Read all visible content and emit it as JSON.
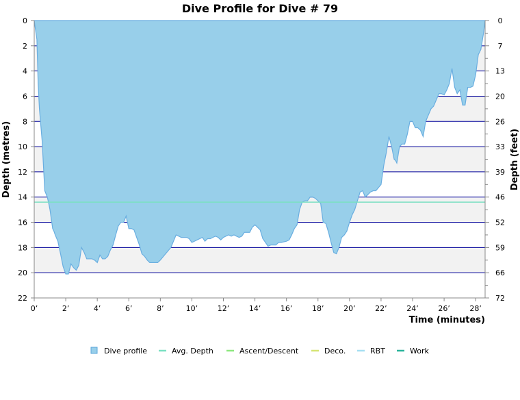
{
  "chart_data": {
    "type": "area",
    "title": "Dive Profile for Dive # 79",
    "xlabel": "Time (minutes)",
    "ylabel": "Depth (metres)",
    "y2label": "Depth (feet)",
    "xlim": [
      0,
      28.6
    ],
    "ylim": [
      0,
      22
    ],
    "y_inverted": true,
    "grid": true,
    "x_ticks": [
      {
        "value": 0,
        "label": "0’"
      },
      {
        "value": 2,
        "label": "2’"
      },
      {
        "value": 4,
        "label": "4’"
      },
      {
        "value": 6,
        "label": "6’"
      },
      {
        "value": 8,
        "label": "8’"
      },
      {
        "value": 10,
        "label": "10’"
      },
      {
        "value": 12,
        "label": "12’"
      },
      {
        "value": 14,
        "label": "14’"
      },
      {
        "value": 16,
        "label": "16’"
      },
      {
        "value": 18,
        "label": "18’"
      },
      {
        "value": 20,
        "label": "20’"
      },
      {
        "value": 22,
        "label": "22’"
      },
      {
        "value": 24,
        "label": "24’"
      },
      {
        "value": 26,
        "label": "26’"
      },
      {
        "value": 28,
        "label": "28’"
      }
    ],
    "y_ticks": [
      {
        "value": 0,
        "label": "0"
      },
      {
        "value": 2,
        "label": "2"
      },
      {
        "value": 4,
        "label": "4"
      },
      {
        "value": 6,
        "label": "6"
      },
      {
        "value": 8,
        "label": "8"
      },
      {
        "value": 10,
        "label": "10"
      },
      {
        "value": 12,
        "label": "12"
      },
      {
        "value": 14,
        "label": "14"
      },
      {
        "value": 16,
        "label": "16"
      },
      {
        "value": 18,
        "label": "18"
      },
      {
        "value": 20,
        "label": "20"
      },
      {
        "value": 22,
        "label": "22"
      }
    ],
    "y2_ticks": [
      {
        "value": 0,
        "label": "0"
      },
      {
        "value": 2,
        "label": "7"
      },
      {
        "value": 4,
        "label": "13"
      },
      {
        "value": 6,
        "label": "20"
      },
      {
        "value": 8,
        "label": "26"
      },
      {
        "value": 10,
        "label": "33"
      },
      {
        "value": 12,
        "label": "39"
      },
      {
        "value": 14,
        "label": "46"
      },
      {
        "value": 16,
        "label": "52"
      },
      {
        "value": 18,
        "label": "59"
      },
      {
        "value": 20,
        "label": "66"
      },
      {
        "value": 22,
        "label": "72"
      }
    ],
    "avg_depth": 14.4,
    "series": [
      {
        "name": "Dive profile",
        "x": [
          0.0,
          0.17,
          0.25,
          0.33,
          0.5,
          0.67,
          0.83,
          0.92,
          1.0,
          1.17,
          1.25,
          1.33,
          1.5,
          1.67,
          1.83,
          2.0,
          2.17,
          2.33,
          2.5,
          2.67,
          2.83,
          3.0,
          3.17,
          3.33,
          3.5,
          3.67,
          3.83,
          4.0,
          4.17,
          4.33,
          4.5,
          4.67,
          4.83,
          5.0,
          5.17,
          5.33,
          5.5,
          5.67,
          5.83,
          6.0,
          6.17,
          6.33,
          6.5,
          6.67,
          6.83,
          7.0,
          7.17,
          7.33,
          7.5,
          7.67,
          7.83,
          8.0,
          8.33,
          8.67,
          9.0,
          9.33,
          9.67,
          9.83,
          10.0,
          10.33,
          10.67,
          10.83,
          11.0,
          11.17,
          11.33,
          11.5,
          11.67,
          11.83,
          12.0,
          12.33,
          12.5,
          12.67,
          12.83,
          13.0,
          13.17,
          13.33,
          13.67,
          13.83,
          14.0,
          14.17,
          14.33,
          14.5,
          14.67,
          14.83,
          15.0,
          15.33,
          15.5,
          15.67,
          16.0,
          16.17,
          16.33,
          16.5,
          16.67,
          16.83,
          17.0,
          17.17,
          17.33,
          17.5,
          17.67,
          17.83,
          18.0,
          18.17,
          18.33,
          18.5,
          18.67,
          18.83,
          19.0,
          19.17,
          19.33,
          19.5,
          19.67,
          19.83,
          20.0,
          20.17,
          20.33,
          20.5,
          20.67,
          20.83,
          21.0,
          21.17,
          21.33,
          21.5,
          21.67,
          22.0,
          22.17,
          22.33,
          22.5,
          22.67,
          22.83,
          22.92,
          23.0,
          23.17,
          23.33,
          23.5,
          23.67,
          23.83,
          24.0,
          24.17,
          24.33,
          24.5,
          24.67,
          24.83,
          25.0,
          25.17,
          25.33,
          25.5,
          25.67,
          25.83,
          26.0,
          26.17,
          26.33,
          26.5,
          26.67,
          26.83,
          27.0,
          27.17,
          27.33,
          27.5,
          27.67,
          27.83,
          28.0,
          28.17,
          28.33,
          28.5,
          28.6
        ],
        "y": [
          0.0,
          1.5,
          5.0,
          7.0,
          9.5,
          13.5,
          14.0,
          14.5,
          15.0,
          16.5,
          16.7,
          17.0,
          17.5,
          18.5,
          19.5,
          20.1,
          20.1,
          19.3,
          19.6,
          19.8,
          19.4,
          18.0,
          18.4,
          18.9,
          18.9,
          18.9,
          19.0,
          19.2,
          18.6,
          18.9,
          18.9,
          18.7,
          18.2,
          17.8,
          17.0,
          16.3,
          16.0,
          16.0,
          15.5,
          16.5,
          16.5,
          16.6,
          17.2,
          17.8,
          18.5,
          18.7,
          19.0,
          19.2,
          19.2,
          19.2,
          19.2,
          19.0,
          18.5,
          18.0,
          17.0,
          17.2,
          17.2,
          17.3,
          17.6,
          17.4,
          17.2,
          17.5,
          17.3,
          17.3,
          17.2,
          17.1,
          17.2,
          17.4,
          17.2,
          17.0,
          17.1,
          17.0,
          17.1,
          17.2,
          17.1,
          16.8,
          16.8,
          16.4,
          16.2,
          16.4,
          16.6,
          17.3,
          17.6,
          17.9,
          17.8,
          17.8,
          17.6,
          17.6,
          17.5,
          17.4,
          17.0,
          16.5,
          16.2,
          15.0,
          14.4,
          14.3,
          14.3,
          14.0,
          14.0,
          14.1,
          14.3,
          14.5,
          16.0,
          16.1,
          16.8,
          17.6,
          18.4,
          18.5,
          18.0,
          17.2,
          17.0,
          16.7,
          16.0,
          15.4,
          15.0,
          14.3,
          13.6,
          13.5,
          14.0,
          13.8,
          13.6,
          13.5,
          13.5,
          13.0,
          11.5,
          10.5,
          9.2,
          10.0,
          11.0,
          11.1,
          11.3,
          10.0,
          9.8,
          9.8,
          9.0,
          8.0,
          8.0,
          8.5,
          8.5,
          8.7,
          9.2,
          8.0,
          7.5,
          7.0,
          6.8,
          6.3,
          5.8,
          5.8,
          5.9,
          5.5,
          5.0,
          3.8,
          5.3,
          5.8,
          5.5,
          6.7,
          6.7,
          5.3,
          5.3,
          5.2,
          4.3,
          2.7,
          2.3,
          1.0,
          0.0
        ]
      }
    ]
  },
  "legend": [
    {
      "label": "Dive profile",
      "color": "#98cfea",
      "stroke": "#5aa6da",
      "shape": "square"
    },
    {
      "label": "Avg. Depth",
      "color": "#7be0c2",
      "shape": "line"
    },
    {
      "label": "Ascent/Descent",
      "color": "#8ee87f",
      "shape": "line"
    },
    {
      "label": "Deco.",
      "color": "#d6e575",
      "shape": "line"
    },
    {
      "label": "RBT",
      "color": "#a6dff2",
      "shape": "line"
    },
    {
      "label": "Work",
      "color": "#2bb49c",
      "shape": "line"
    }
  ],
  "colors": {
    "area_fill": "#98cfea",
    "area_stroke": "#6aaee0",
    "grid_line": "#000099",
    "band": "#f2f2f2",
    "avg_line": "#7be0c2"
  }
}
